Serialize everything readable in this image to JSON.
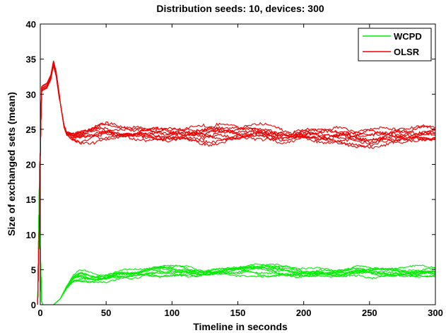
{
  "chart_data": {
    "type": "line",
    "title": "Distribution seeds: 10, devices: 300",
    "xlabel": "Timeline in seconds",
    "ylabel": "Size of exchanged sets (mean)",
    "xlim": [
      0,
      300
    ],
    "ylim": [
      0,
      40
    ],
    "x_ticks": [
      "0",
      "50",
      "100",
      "150",
      "200",
      "250",
      "300"
    ],
    "y_ticks": [
      "0",
      "5",
      "10",
      "15",
      "20",
      "25",
      "30",
      "35",
      "40"
    ],
    "grid": false,
    "legend_position": "top-right",
    "runs_per_series": 10,
    "series": [
      {
        "name": "WCPD",
        "color": "#00ee00",
        "x": [
          -2,
          -0.5,
          0,
          1,
          2,
          5,
          10,
          15,
          20,
          25,
          30,
          40,
          50,
          60,
          70,
          80,
          90,
          100,
          110,
          120,
          130,
          140,
          150,
          160,
          170,
          180,
          190,
          200,
          210,
          220,
          230,
          240,
          250,
          260,
          270,
          280,
          290,
          300
        ],
        "values": [
          0,
          20.5,
          8,
          0.5,
          0,
          0,
          0,
          0.8,
          2.5,
          3.7,
          4.1,
          3.9,
          3.9,
          4.2,
          4.3,
          4.5,
          4.7,
          4.8,
          4.7,
          4.6,
          4.7,
          4.8,
          4.9,
          5.0,
          4.9,
          4.8,
          4.7,
          4.6,
          4.6,
          4.5,
          4.5,
          4.6,
          4.6,
          4.6,
          4.7,
          4.7,
          4.6,
          4.6
        ]
      },
      {
        "name": "OLSR",
        "color": "#ee0000",
        "x": [
          -2,
          -0.5,
          0,
          1,
          2,
          5,
          8,
          10,
          12,
          15,
          18,
          20,
          25,
          30,
          40,
          50,
          60,
          70,
          80,
          90,
          100,
          110,
          120,
          130,
          140,
          150,
          160,
          170,
          180,
          190,
          200,
          210,
          220,
          230,
          240,
          250,
          260,
          270,
          280,
          290,
          300
        ],
        "values": [
          0,
          13,
          21.5,
          30.8,
          31.0,
          31.3,
          32.5,
          34.5,
          33.0,
          29.0,
          25.5,
          24.5,
          24.2,
          24.3,
          24.4,
          24.6,
          24.5,
          24.4,
          24.5,
          24.6,
          24.5,
          24.5,
          24.5,
          24.4,
          24.5,
          24.6,
          24.7,
          24.5,
          24.4,
          24.3,
          24.2,
          24.1,
          24.1,
          24.0,
          23.8,
          24.0,
          24.2,
          24.3,
          24.3,
          24.4,
          24.4
        ]
      }
    ]
  }
}
